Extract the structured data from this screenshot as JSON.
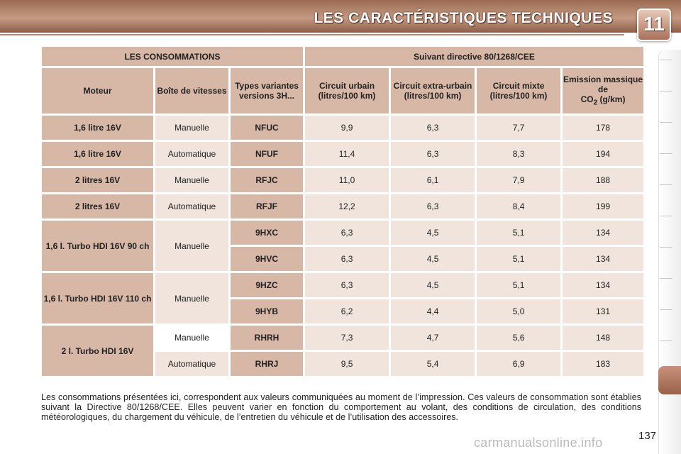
{
  "page": {
    "title": "LES CARACTÉRISTIQUES TECHNIQUES",
    "chapter_number": "11",
    "page_number": "137",
    "watermark": "carmanualsonline.info"
  },
  "table": {
    "top_headers": [
      "LES CONSOMMATIONS",
      "Suivant directive 80/1268/CEE"
    ],
    "columns": {
      "engine": "Moteur",
      "gearbox": "Boîte de vitesses",
      "variants": "Types variantes versions 3H...",
      "urban": "Circuit urbain (litres/100 km)",
      "extra_urban": "Circuit extra-urbain (litres/100 km)",
      "combined": "Circuit mixte (litres/100 km)",
      "co2_line1": "Emission massique de",
      "co2_prefix": "CO",
      "co2_sub": "2",
      "co2_suffix": " (g/km)"
    },
    "engines": [
      "1,6 litre 16V",
      "1,6 litre 16V",
      "2 litres 16V",
      "2 litres 16V",
      "1,6 l. Turbo HDI 16V 90 ch",
      "1,6 l. Turbo HDI 16V 110 ch",
      "2 l. Turbo HDI 16V"
    ],
    "gearboxes": [
      "Manuelle",
      "Automatique",
      "Manuelle",
      "Automatique",
      "Manuelle",
      "Manuelle",
      "Manuelle",
      "Automatique"
    ],
    "rows": [
      {
        "code": "NFUC",
        "urban": "9,9",
        "extra": "6,3",
        "mixed": "7,7",
        "co2": "178"
      },
      {
        "code": "NFUF",
        "urban": "11,4",
        "extra": "6,3",
        "mixed": "8,3",
        "co2": "194"
      },
      {
        "code": "RFJC",
        "urban": "11,0",
        "extra": "6,1",
        "mixed": "7,9",
        "co2": "188"
      },
      {
        "code": "RFJF",
        "urban": "12,2",
        "extra": "6,3",
        "mixed": "8,4",
        "co2": "199"
      },
      {
        "code": "9HXC",
        "urban": "6,3",
        "extra": "4,5",
        "mixed": "5,1",
        "co2": "134"
      },
      {
        "code": "9HVC",
        "urban": "6,3",
        "extra": "4,5",
        "mixed": "5,1",
        "co2": "134"
      },
      {
        "code": "9HZC",
        "urban": "6,3",
        "extra": "4,5",
        "mixed": "5,1",
        "co2": "134"
      },
      {
        "code": "9HYB",
        "urban": "6,2",
        "extra": "4,4",
        "mixed": "5,0",
        "co2": "131"
      },
      {
        "code": "RHRH",
        "urban": "7,3",
        "extra": "4,7",
        "mixed": "5,6",
        "co2": "148"
      },
      {
        "code": "RHRJ",
        "urban": "9,5",
        "extra": "5,4",
        "mixed": "6,9",
        "co2": "183"
      }
    ]
  },
  "footnote": "Les consommations présentées ici, correspondent aux valeurs communiquées au moment de l’impression. Ces valeurs de consommation sont établies suivant la Directive 80/1268/CEE. Elles peuvent varier en fonction du comportement au volant, des conditions de circulation, des conditions météorologiques, du chargement du véhicule, de l’entretien du véhicule et de l’utilisation des accessoires.",
  "colors": {
    "header_band": "#9c6a52",
    "cell_label": "#d7b7a6",
    "cell_value": "#f0e4dc",
    "side_tab_active": "#9a6148"
  }
}
